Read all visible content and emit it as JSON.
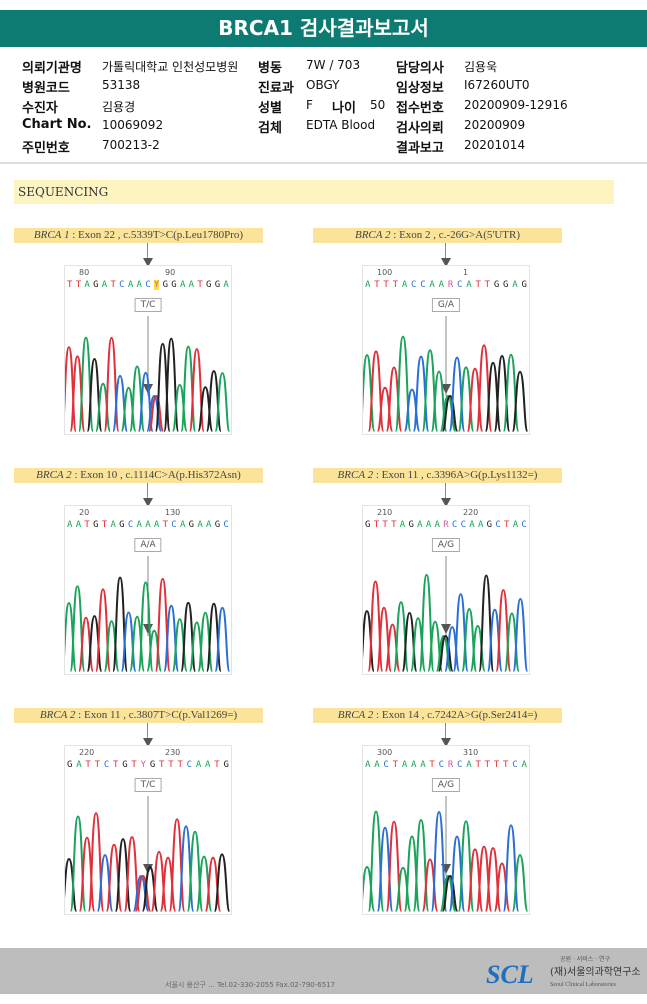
{
  "title": "BRCA1 검사결과보고서",
  "info": [
    {
      "key": "의뢰기관명",
      "value": "가톨릭대학교 인천성모병원"
    },
    {
      "key": "병동",
      "value": "7W / 703"
    },
    {
      "key": "담당의사",
      "value": "김용욱"
    },
    {
      "key": "병원코드",
      "value": "53138"
    },
    {
      "key": "진료과",
      "value": "OBGY"
    },
    {
      "key": "임상정보",
      "value": "I67260UT0"
    },
    {
      "key": "수진자",
      "value": "김용경"
    },
    {
      "key": "성별",
      "value": "F"
    },
    {
      "key": "나이",
      "value": "50"
    },
    {
      "key": "접수번호",
      "value": "20200909-12916"
    },
    {
      "key": "Chart No.",
      "value": "10069092"
    },
    {
      "key": "검체",
      "value": "EDTA Blood"
    },
    {
      "key": "검사의뢰",
      "value": "20200909"
    },
    {
      "key": "주민번호",
      "value": "700213-2"
    },
    {
      "key": "결과보고",
      "value": "20201014"
    }
  ],
  "section_title": "SEQUENCING",
  "base_colors": {
    "A": "#1aa35a",
    "C": "#2a6fd6",
    "G": "#222222",
    "T": "#e0303a",
    "Y": "#d45aa0",
    "R": "#d45aa0"
  },
  "panels": [
    {
      "gene": "BRCA 1",
      "desc": " : Exon 22 , c.5339T>C(p.Leu1780Pro)",
      "ticks": [
        "80",
        "90"
      ],
      "sequence": "TTAGATCAACYGGAATGGA",
      "highlight": 10,
      "genotype": "T/C"
    },
    {
      "gene": "BRCA 2",
      "desc": " : Exon 2 , c.-26G>A(5'UTR)",
      "ticks": [
        "100",
        "1"
      ],
      "sequence": "ATTTACCAARCATTGGAG",
      "highlight": -1,
      "genotype": "G/A"
    },
    {
      "gene": "BRCA 2",
      "desc": " : Exon 10 , c.1114C>A(p.His372Asn)",
      "ticks": [
        "20",
        "130"
      ],
      "sequence": "AATGTAGCAAATCAGAAGC",
      "highlight": -1,
      "genotype": "A/A"
    },
    {
      "gene": "BRCA 2",
      "desc": " : Exon 11 , c.3396A>G(p.Lys1132=)",
      "ticks": [
        "210",
        "220"
      ],
      "sequence": "GTTTAGAAARCCAAGCTAC",
      "highlight": -1,
      "genotype": "A/G"
    },
    {
      "gene": "BRCA 2",
      "desc": " : Exon 11 , c.3807T>C(p.Val1269=)",
      "ticks": [
        "220",
        "230"
      ],
      "sequence": "GATTCTGTYGTTTCAATG",
      "highlight": -1,
      "genotype": "T/C"
    },
    {
      "gene": "BRCA 2",
      "desc": " : Exon 14 , c.7242A>G(p.Ser2414=)",
      "ticks": [
        "300",
        "310"
      ],
      "sequence": "AACTAAATCRCATTTTCA",
      "highlight": -1,
      "genotype": "A/G"
    }
  ],
  "footer": {
    "address": "서울시 용산구 ... Tel.02-330-2055  Fax.02-790-6517",
    "logo": "SCL",
    "slogan": "공원 · 서비스 · 연구",
    "org": "(재)서울의과학연구소",
    "org_en": "Seoul Clinical Laboratories"
  }
}
